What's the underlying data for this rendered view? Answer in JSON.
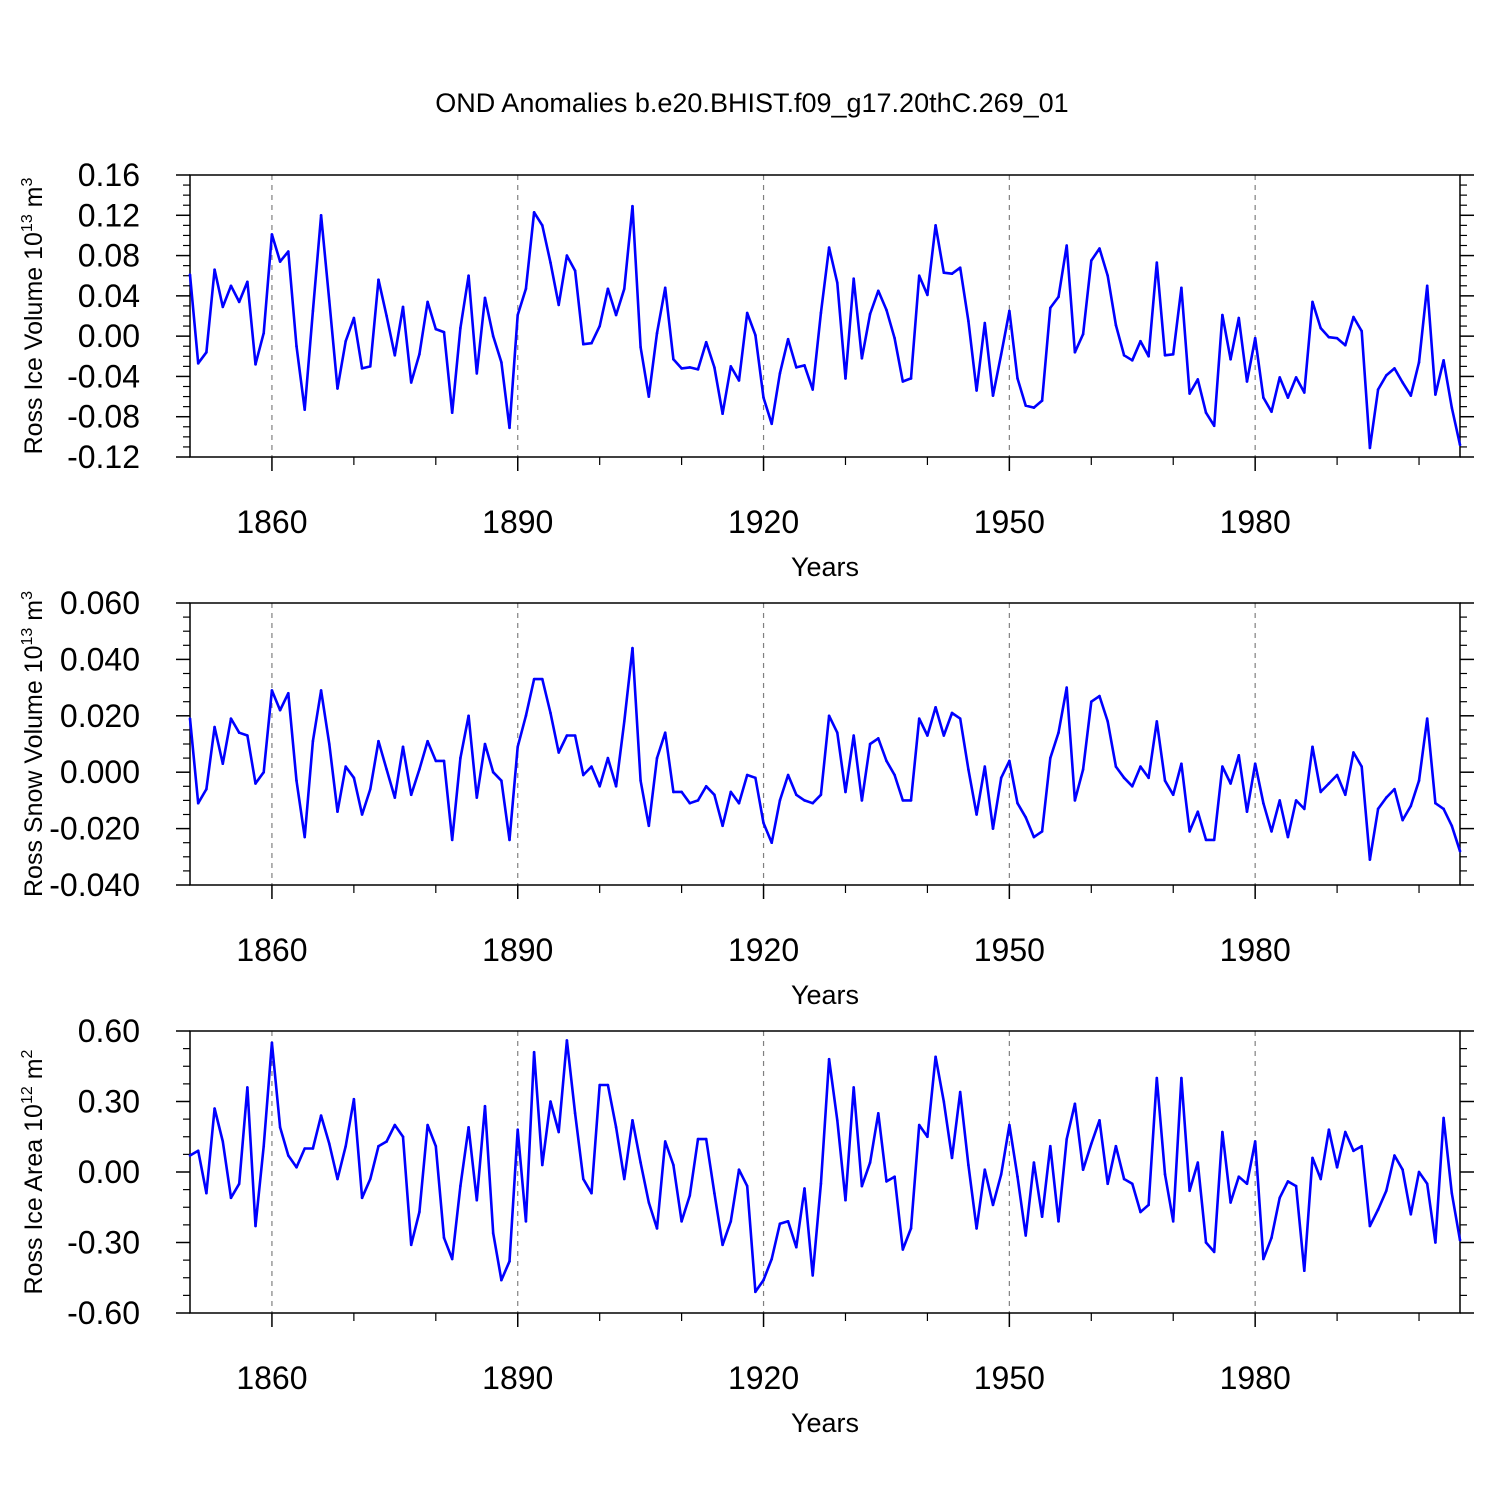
{
  "title": "OND Anomalies b.e20.BHIST.f09_g17.20thC.269_01",
  "colors": {
    "series": "#0000ff",
    "axis": "#000000",
    "grid": "#808080"
  },
  "chart_data": [
    {
      "type": "line",
      "ylabel": {
        "text": "Ross Ice Volume 10",
        "exp": "13",
        "unit": " m",
        "unit_exp": "3"
      },
      "xlabel": "Years",
      "xlim": [
        1850,
        2005
      ],
      "ylim": [
        -0.12,
        0.16
      ],
      "yticks": [
        -0.12,
        -0.08,
        -0.04,
        0.0,
        0.04,
        0.08,
        0.12,
        0.16
      ],
      "ytick_labels": [
        "-0.12",
        "-0.08",
        "-0.04",
        "0.00",
        "0.04",
        "0.08",
        "0.12",
        "0.16"
      ],
      "xticks": [
        1860,
        1890,
        1920,
        1950,
        1980
      ],
      "xtick_labels": [
        "1860",
        "1890",
        "1920",
        "1950",
        "1980"
      ],
      "x_start": 1850,
      "values": [
        0.061,
        -0.027,
        -0.016,
        0.066,
        0.029,
        0.05,
        0.034,
        0.054,
        -0.028,
        0.003,
        0.101,
        0.074,
        0.084,
        -0.01,
        -0.073,
        0.025,
        0.12,
        0.035,
        -0.052,
        -0.005,
        0.018,
        -0.032,
        -0.03,
        0.056,
        0.02,
        -0.019,
        0.029,
        -0.046,
        -0.018,
        0.034,
        0.007,
        0.004,
        -0.076,
        0.008,
        0.06,
        -0.037,
        0.038,
        0.0,
        -0.026,
        -0.091,
        0.021,
        0.047,
        0.123,
        0.11,
        0.073,
        0.031,
        0.08,
        0.065,
        -0.008,
        -0.007,
        0.01,
        0.047,
        0.021,
        0.047,
        0.129,
        -0.011,
        -0.06,
        0.003,
        0.048,
        -0.023,
        -0.032,
        -0.031,
        -0.033,
        -0.006,
        -0.031,
        -0.077,
        -0.03,
        -0.044,
        0.023,
        0.001,
        -0.061,
        -0.087,
        -0.037,
        -0.003,
        -0.031,
        -0.029,
        -0.053,
        0.023,
        0.088,
        0.053,
        -0.042,
        0.057,
        -0.022,
        0.022,
        0.045,
        0.026,
        -0.002,
        -0.045,
        -0.042,
        0.06,
        0.041,
        0.11,
        0.063,
        0.062,
        0.068,
        0.015,
        -0.054,
        0.013,
        -0.059,
        -0.018,
        0.025,
        -0.042,
        -0.069,
        -0.071,
        -0.064,
        0.028,
        0.039,
        0.09,
        -0.016,
        0.002,
        0.075,
        0.087,
        0.06,
        0.011,
        -0.019,
        -0.024,
        -0.005,
        -0.02,
        0.073,
        -0.019,
        -0.018,
        0.048,
        -0.057,
        -0.043,
        -0.076,
        -0.089,
        0.021,
        -0.023,
        0.018,
        -0.045,
        -0.002,
        -0.061,
        -0.075,
        -0.041,
        -0.061,
        -0.041,
        -0.056,
        0.034,
        0.008,
        -0.001,
        -0.002,
        -0.009,
        0.019,
        0.005,
        -0.111,
        -0.053,
        -0.039,
        -0.032,
        -0.046,
        -0.059,
        -0.026,
        0.05,
        -0.058,
        -0.024,
        -0.071,
        -0.108
      ]
    },
    {
      "type": "line",
      "ylabel": {
        "text": "Ross Snow Volume 10",
        "exp": "13",
        "unit": " m",
        "unit_exp": "3"
      },
      "xlabel": "Years",
      "xlim": [
        1850,
        2005
      ],
      "ylim": [
        -0.04,
        0.06
      ],
      "yticks": [
        -0.04,
        -0.02,
        0.0,
        0.02,
        0.04,
        0.06
      ],
      "ytick_labels": [
        "-0.040",
        "-0.020",
        "0.000",
        "0.020",
        "0.040",
        "0.060"
      ],
      "xticks": [
        1860,
        1890,
        1920,
        1950,
        1980
      ],
      "xtick_labels": [
        "1860",
        "1890",
        "1920",
        "1950",
        "1980"
      ],
      "x_start": 1850,
      "values": [
        0.019,
        -0.011,
        -0.006,
        0.016,
        0.003,
        0.019,
        0.014,
        0.013,
        -0.004,
        0.0,
        0.029,
        0.022,
        0.028,
        -0.003,
        -0.023,
        0.011,
        0.029,
        0.01,
        -0.014,
        0.002,
        -0.002,
        -0.015,
        -0.006,
        0.011,
        0.001,
        -0.009,
        0.009,
        -0.008,
        0.001,
        0.011,
        0.004,
        0.004,
        -0.024,
        0.005,
        0.02,
        -0.009,
        0.01,
        0.0,
        -0.003,
        -0.024,
        0.009,
        0.02,
        0.033,
        0.033,
        0.021,
        0.007,
        0.013,
        0.013,
        -0.001,
        0.002,
        -0.005,
        0.005,
        -0.005,
        0.018,
        0.044,
        -0.003,
        -0.019,
        0.005,
        0.014,
        -0.007,
        -0.007,
        -0.011,
        -0.01,
        -0.005,
        -0.008,
        -0.019,
        -0.007,
        -0.011,
        -0.001,
        -0.002,
        -0.018,
        -0.025,
        -0.01,
        -0.001,
        -0.008,
        -0.01,
        -0.011,
        -0.008,
        0.02,
        0.014,
        -0.007,
        0.013,
        -0.01,
        0.01,
        0.012,
        0.004,
        -0.001,
        -0.01,
        -0.01,
        0.019,
        0.013,
        0.023,
        0.013,
        0.021,
        0.019,
        0.001,
        -0.015,
        0.002,
        -0.02,
        -0.002,
        0.004,
        -0.011,
        -0.016,
        -0.023,
        -0.021,
        0.005,
        0.014,
        0.03,
        -0.01,
        0.001,
        0.025,
        0.027,
        0.018,
        0.002,
        -0.002,
        -0.005,
        0.002,
        -0.002,
        0.018,
        -0.003,
        -0.008,
        0.003,
        -0.021,
        -0.014,
        -0.024,
        -0.024,
        0.002,
        -0.004,
        0.006,
        -0.014,
        0.003,
        -0.011,
        -0.021,
        -0.01,
        -0.023,
        -0.01,
        -0.013,
        0.009,
        -0.007,
        -0.004,
        -0.001,
        -0.008,
        0.007,
        0.002,
        -0.031,
        -0.013,
        -0.009,
        -0.006,
        -0.017,
        -0.012,
        -0.003,
        0.019,
        -0.011,
        -0.013,
        -0.019,
        -0.028
      ]
    },
    {
      "type": "line",
      "ylabel": {
        "text": "Ross Ice Area 10",
        "exp": "12",
        "unit": " m",
        "unit_exp": "2"
      },
      "xlabel": "Years",
      "xlim": [
        1850,
        2005
      ],
      "ylim": [
        -0.6,
        0.6
      ],
      "yticks": [
        -0.6,
        -0.3,
        0.0,
        0.3,
        0.6
      ],
      "ytick_labels": [
        "-0.60",
        "-0.30",
        "0.00",
        "0.30",
        "0.60"
      ],
      "xticks": [
        1860,
        1890,
        1920,
        1950,
        1980
      ],
      "xtick_labels": [
        "1860",
        "1890",
        "1920",
        "1950",
        "1980"
      ],
      "x_start": 1850,
      "values": [
        0.07,
        0.09,
        -0.09,
        0.27,
        0.13,
        -0.11,
        -0.05,
        0.36,
        -0.23,
        0.11,
        0.55,
        0.19,
        0.07,
        0.02,
        0.1,
        0.1,
        0.24,
        0.12,
        -0.03,
        0.11,
        0.31,
        -0.11,
        -0.03,
        0.11,
        0.13,
        0.2,
        0.15,
        -0.31,
        -0.17,
        0.2,
        0.11,
        -0.28,
        -0.37,
        -0.06,
        0.19,
        -0.12,
        0.28,
        -0.26,
        -0.46,
        -0.38,
        0.18,
        -0.21,
        0.51,
        0.03,
        0.3,
        0.17,
        0.56,
        0.25,
        -0.03,
        -0.09,
        0.37,
        0.37,
        0.19,
        -0.03,
        0.22,
        0.04,
        -0.13,
        -0.24,
        0.13,
        0.03,
        -0.21,
        -0.1,
        0.14,
        0.14,
        -0.09,
        -0.31,
        -0.21,
        0.01,
        -0.06,
        -0.51,
        -0.46,
        -0.37,
        -0.22,
        -0.21,
        -0.32,
        -0.07,
        -0.44,
        -0.05,
        0.48,
        0.22,
        -0.12,
        0.36,
        -0.06,
        0.04,
        0.25,
        -0.04,
        -0.02,
        -0.33,
        -0.24,
        0.2,
        0.15,
        0.49,
        0.3,
        0.06,
        0.34,
        0.03,
        -0.24,
        0.01,
        -0.14,
        -0.01,
        0.2,
        -0.02,
        -0.27,
        0.04,
        -0.19,
        0.11,
        -0.21,
        0.14,
        0.29,
        0.01,
        0.12,
        0.22,
        -0.05,
        0.11,
        -0.03,
        -0.05,
        -0.17,
        -0.14,
        0.4,
        -0.01,
        -0.21,
        0.4,
        -0.08,
        0.04,
        -0.3,
        -0.34,
        0.17,
        -0.13,
        -0.02,
        -0.05,
        0.13,
        -0.37,
        -0.28,
        -0.11,
        -0.04,
        -0.06,
        -0.42,
        0.06,
        -0.03,
        0.18,
        0.02,
        0.17,
        0.09,
        0.11,
        -0.23,
        -0.16,
        -0.08,
        0.07,
        0.01,
        -0.18,
        0.0,
        -0.05,
        -0.3,
        0.23,
        -0.09,
        -0.29
      ]
    }
  ]
}
